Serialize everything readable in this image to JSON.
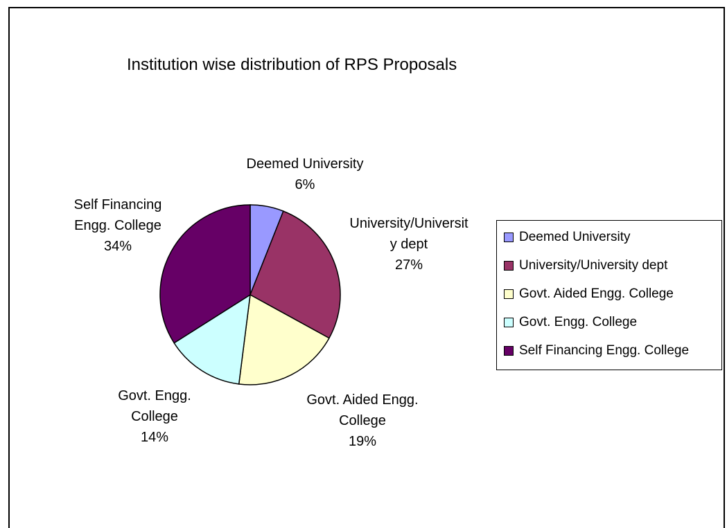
{
  "chart_data": {
    "type": "pie",
    "title": "Institution wise distribution of RPS Proposals",
    "slices": [
      {
        "name": "Deemed University",
        "value": 6,
        "color": "#9999ff",
        "data_label": "Deemed University\n6%",
        "legend_label": "Deemed University"
      },
      {
        "name": "University/University dept",
        "value": 27,
        "color": "#993366",
        "data_label": "University/Universit\ny dept\n27%",
        "legend_label": "University/University dept"
      },
      {
        "name": "Govt. Aided Engg. College",
        "value": 19,
        "color": "#ffffcc",
        "data_label": "Govt. Aided Engg.\nCollege\n19%",
        "legend_label": "Govt. Aided Engg. College"
      },
      {
        "name": "Govt.  Engg. College",
        "value": 14,
        "color": "#ccffff",
        "data_label": "Govt.  Engg.\nCollege\n14%",
        "legend_label": "Govt.  Engg. College"
      },
      {
        "name": "Self Financing Engg. College",
        "value": 34,
        "color": "#660066",
        "data_label": "Self Financing\nEngg. College\n34%",
        "legend_label": "Self Financing Engg. College"
      }
    ],
    "legend_position": "right"
  }
}
